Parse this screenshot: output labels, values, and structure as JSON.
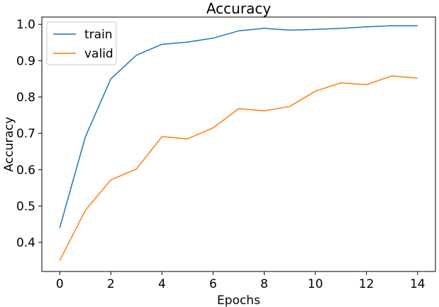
{
  "chart_data": {
    "type": "line",
    "title": "Accuracy",
    "xlabel": "Epochs",
    "ylabel": "Accuracy",
    "x": [
      0,
      1,
      2,
      3,
      4,
      5,
      6,
      7,
      8,
      9,
      10,
      11,
      12,
      13,
      14
    ],
    "xlim": [
      -0.7,
      14.7
    ],
    "ylim": [
      0.32,
      1.02
    ],
    "xticks": [
      0,
      2,
      4,
      6,
      8,
      10,
      12,
      14
    ],
    "yticks": [
      0.4,
      0.5,
      0.6,
      0.7,
      0.8,
      0.9,
      1.0
    ],
    "ytick_labels": [
      "0.4",
      "0.5",
      "0.6",
      "0.7",
      "0.8",
      "0.9",
      "1.0"
    ],
    "grid": false,
    "legend_position": "top-left",
    "series": [
      {
        "name": "train",
        "color": "#1f77b4",
        "values": [
          0.44,
          0.69,
          0.85,
          0.915,
          0.945,
          0.951,
          0.962,
          0.982,
          0.989,
          0.984,
          0.986,
          0.989,
          0.993,
          0.996,
          0.996
        ]
      },
      {
        "name": "valid",
        "color": "#ff7f0e",
        "values": [
          0.35,
          0.488,
          0.572,
          0.602,
          0.691,
          0.685,
          0.715,
          0.768,
          0.762,
          0.774,
          0.816,
          0.839,
          0.834,
          0.858,
          0.852
        ]
      }
    ]
  }
}
